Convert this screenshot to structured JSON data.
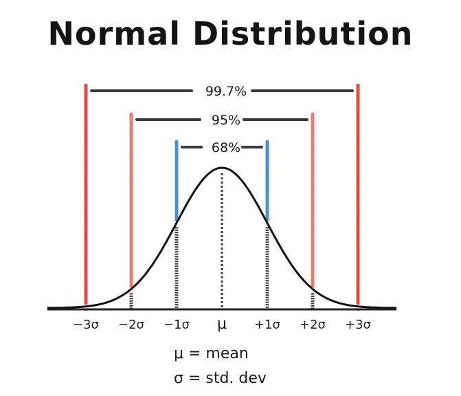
{
  "title": "Normal Distribution",
  "colors": {
    "curve": "#111111",
    "axis": "#222222",
    "sigma1": "#4a90d9",
    "sigma2": "#ef7c6a",
    "sigma3": "#e8473f",
    "bracket": "#3a3a3a",
    "dashed": "#3a3a3a"
  },
  "chart_data": {
    "type": "line",
    "x_ticks": [
      {
        "value": -3,
        "label": "−3σ"
      },
      {
        "value": -2,
        "label": "−2σ"
      },
      {
        "value": -1,
        "label": "−1σ"
      },
      {
        "value": 0,
        "label": "μ"
      },
      {
        "value": 1,
        "label": "+1σ"
      },
      {
        "value": 2,
        "label": "+2σ"
      },
      {
        "value": 3,
        "label": "+3σ"
      }
    ],
    "intervals": [
      {
        "sigma": 1,
        "label": "68%"
      },
      {
        "sigma": 2,
        "label": "95%"
      },
      {
        "sigma": 3,
        "label": "99.7%"
      }
    ],
    "curve": "standard normal density"
  },
  "legend": {
    "mean": "μ = mean",
    "sd": "σ = std. dev"
  }
}
